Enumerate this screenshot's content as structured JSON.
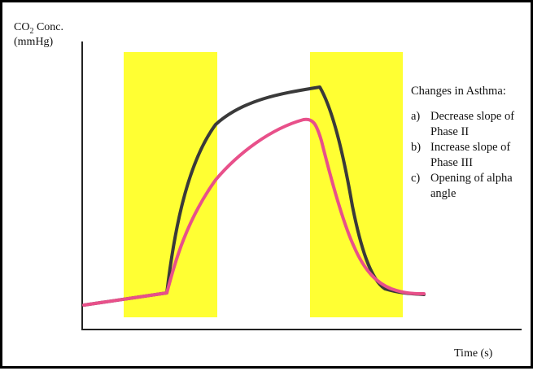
{
  "yaxis": {
    "label_prefix": "CO",
    "label_sub": "2",
    "label_suffix": " Conc.",
    "unit": "(mmHg)"
  },
  "xaxis": {
    "label": "Time (s)"
  },
  "notes": {
    "title": "Changes in Asthma:",
    "items": [
      {
        "marker": "a)",
        "text": "Decrease slope of Phase II"
      },
      {
        "marker": "b)",
        "text": "Increase slope of Phase III"
      },
      {
        "marker": "c)",
        "text": "Opening of alpha angle"
      }
    ]
  },
  "colors": {
    "highlight": "#ffff33",
    "normal_curve": "#3a3a3a",
    "asthma_curve": "#e8508a",
    "axis": "#222222"
  }
}
